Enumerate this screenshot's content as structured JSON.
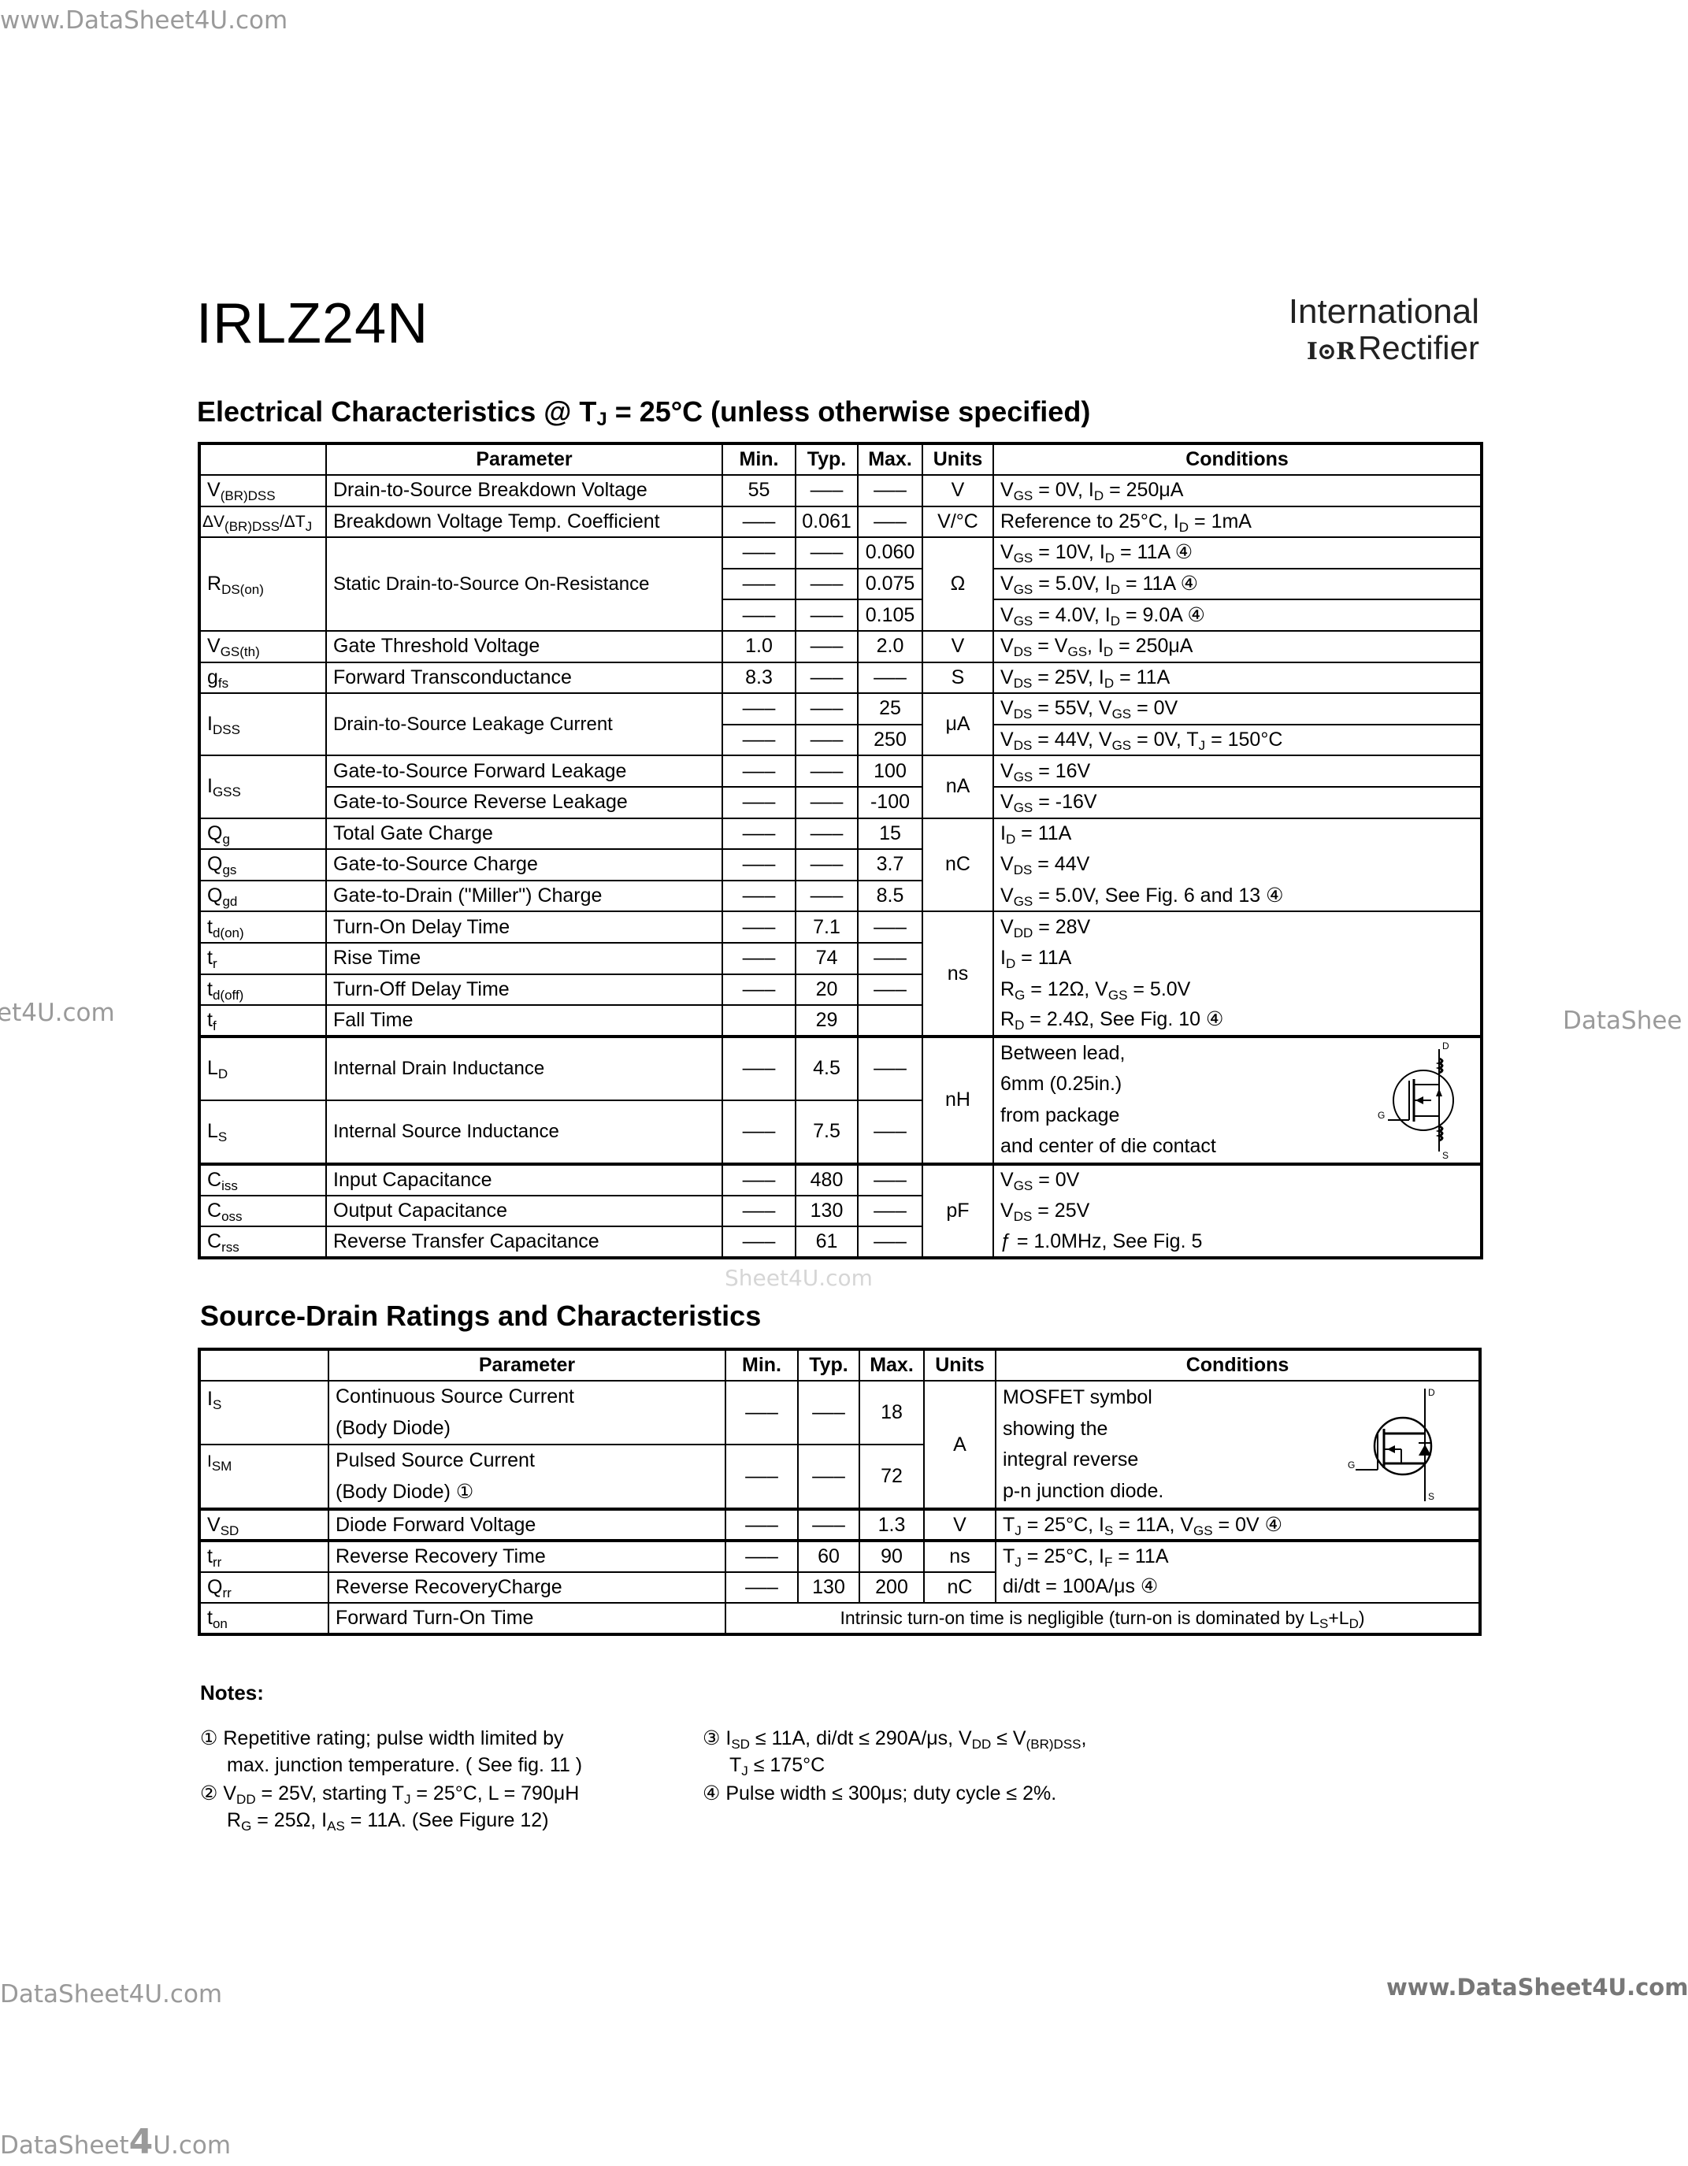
{
  "watermarks": {
    "top_left": "www.DataSheet4U.com",
    "mid_left": "et4U.com",
    "mid_right": "DataShee",
    "table_overlay": "Sheet4U.com",
    "bottom_left": "DataSheet4U.com",
    "bottom_right": "www.DataSheet4U.com",
    "footer_a": "DataSheet",
    "footer_4": "4",
    "footer_b": "U.com"
  },
  "title": "IRLZ24N",
  "logo": {
    "line1": "International",
    "mark": "I⊙R",
    "line2": "Rectifier"
  },
  "ec": {
    "heading": [
      "Electrical Characteristics @ T",
      "J",
      " = 25°C (unless otherwise specified)"
    ],
    "headers": {
      "parameter": "Parameter",
      "min": "Min.",
      "typ": "Typ.",
      "max": "Max.",
      "units": "Units",
      "conditions": "Conditions"
    },
    "rows": [
      {
        "symbol": [
          "V",
          "(BR)DSS"
        ],
        "parameter": "Drain-to-Source Breakdown Voltage",
        "min": "55",
        "typ": "–––",
        "max": "–––",
        "units": "V",
        "conditions": [
          "V",
          "GS",
          " = 0V, I",
          "D",
          " = 250μA"
        ]
      },
      {
        "symbol": [
          "ΔV",
          "(BR)DSS",
          "/ΔT",
          "J"
        ],
        "parameter": "Breakdown Voltage Temp. Coefficient",
        "min": "–––",
        "typ": "0.061",
        "max": "–––",
        "units": "V/°C",
        "conditions": [
          "Reference to 25°C, I",
          "D",
          " = 1mA"
        ]
      },
      {
        "symbol": [
          "R",
          "DS(on)"
        ],
        "parameter": "Static Drain-to-Source On-Resistance",
        "units": "Ω",
        "sub": [
          {
            "min": "–––",
            "typ": "–––",
            "max": "0.060",
            "conditions": [
              "V",
              "GS",
              " = 10V, I",
              "D",
              " = 11A ④"
            ]
          },
          {
            "min": "–––",
            "typ": "–––",
            "max": "0.075",
            "conditions": [
              "V",
              "GS",
              " = 5.0V, I",
              "D",
              " = 11A ④"
            ]
          },
          {
            "min": "–––",
            "typ": "–––",
            "max": "0.105",
            "conditions": [
              "V",
              "GS",
              " = 4.0V, I",
              "D",
              " = 9.0A ④"
            ]
          }
        ]
      },
      {
        "symbol": [
          "V",
          "GS(th)"
        ],
        "parameter": "Gate Threshold Voltage",
        "min": "1.0",
        "typ": "–––",
        "max": "2.0",
        "units": "V",
        "conditions": [
          "V",
          "DS",
          " = V",
          "GS",
          ", I",
          "D",
          " = 250μA"
        ]
      },
      {
        "symbol": [
          "g",
          "fs"
        ],
        "parameter": "Forward Transconductance",
        "min": "8.3",
        "typ": "–––",
        "max": "–––",
        "units": "S",
        "conditions": [
          "V",
          "DS",
          " = 25V, I",
          "D",
          " = 11A"
        ]
      },
      {
        "symbol": [
          "I",
          "DSS"
        ],
        "parameter": "Drain-to-Source Leakage Current",
        "units": "μA",
        "sub": [
          {
            "min": "–––",
            "typ": "–––",
            "max": "25",
            "conditions": [
              "V",
              "DS",
              " = 55V, V",
              "GS",
              " = 0V"
            ]
          },
          {
            "min": "–––",
            "typ": "–––",
            "max": "250",
            "conditions": [
              "V",
              "DS",
              " = 44V, V",
              "GS",
              " = 0V, T",
              "J",
              " = 150°C"
            ]
          }
        ]
      },
      {
        "symbol": [
          "I",
          "GSS"
        ],
        "units": "nA",
        "sub": [
          {
            "parameter": "Gate-to-Source Forward Leakage",
            "min": "–––",
            "typ": "–––",
            "max": "100",
            "conditions": [
              "V",
              "GS",
              " = 16V"
            ]
          },
          {
            "parameter": "Gate-to-Source Reverse Leakage",
            "min": "–––",
            "typ": "–––",
            "max": "-100",
            "conditions": [
              "V",
              "GS",
              " = -16V"
            ]
          }
        ]
      },
      {
        "symbol": [
          "Q",
          "g"
        ],
        "parameter": "Total Gate Charge",
        "min": "–––",
        "typ": "–––",
        "max": "15",
        "units": "nC",
        "conditions": [
          "I",
          "D",
          " = 11A"
        ]
      },
      {
        "symbol": [
          "Q",
          "gs"
        ],
        "parameter": "Gate-to-Source Charge",
        "min": "–––",
        "typ": "–––",
        "max": "3.7",
        "conditions": [
          "V",
          "DS",
          "  = 44V"
        ]
      },
      {
        "symbol": [
          "Q",
          "gd"
        ],
        "parameter": "Gate-to-Drain (\"Miller\") Charge",
        "min": "–––",
        "typ": "–––",
        "max": "8.5",
        "conditions": [
          "V",
          "GS",
          " = 5.0V, See Fig. 6 and 13 ④"
        ]
      },
      {
        "symbol": [
          "t",
          "d(on)"
        ],
        "parameter": "Turn-On Delay Time",
        "min": "–––",
        "typ": "7.1",
        "max": "–––",
        "units": "ns",
        "conditions": [
          "V",
          "DD",
          "  = 28V"
        ]
      },
      {
        "symbol": [
          "t",
          "r"
        ],
        "parameter": "Rise Time",
        "min": "–––",
        "typ": "74",
        "max": "–––",
        "conditions": [
          "I",
          "D",
          " = 11A"
        ]
      },
      {
        "symbol": [
          "t",
          "d(off)"
        ],
        "parameter": "Turn-Off Delay Time",
        "min": "–––",
        "typ": "20",
        "max": "–––",
        "conditions": [
          "R",
          "G",
          " = 12Ω, V",
          "GS",
          " = 5.0V"
        ]
      },
      {
        "symbol": [
          "t",
          "f"
        ],
        "parameter": "Fall Time",
        "min": "",
        "typ": "29",
        "max": "",
        "conditions": [
          "R",
          "D",
          " = 2.4Ω, See Fig. 10 ④"
        ]
      },
      {
        "symbol": [
          "L",
          "D"
        ],
        "parameter": "Internal Drain Inductance",
        "min": "–––",
        "typ": "4.5",
        "max": "–––",
        "units": "nH",
        "conditions_lines": [
          "Between lead,",
          "6mm (0.25in.)",
          "from package",
          "and center of die contact"
        ],
        "symbol_labels": {
          "d": "D",
          "g": "G",
          "s": "S"
        }
      },
      {
        "symbol": [
          "L",
          "S"
        ],
        "parameter": "Internal Source Inductance",
        "min": "–––",
        "typ": "7.5",
        "max": "–––"
      },
      {
        "symbol": [
          "C",
          "iss"
        ],
        "parameter": "Input Capacitance",
        "min": "–––",
        "typ": "480",
        "max": "–––",
        "units": "pF",
        "conditions": [
          "V",
          "GS",
          " = 0V"
        ]
      },
      {
        "symbol": [
          "C",
          "oss"
        ],
        "parameter": "Output Capacitance",
        "min": "–––",
        "typ": "130",
        "max": "–––",
        "conditions": [
          "V",
          "DS",
          " = 25V"
        ]
      },
      {
        "symbol": [
          "C",
          "rss"
        ],
        "parameter": "Reverse Transfer Capacitance",
        "min": "–––",
        "typ": "61",
        "max": "–––",
        "conditions": [
          "ƒ = 1.0MHz, See Fig. 5"
        ]
      }
    ]
  },
  "sd": {
    "heading": "Source-Drain Ratings and Characteristics",
    "headers": {
      "parameter": "Parameter",
      "min": "Min.",
      "typ": "Typ.",
      "max": "Max.",
      "units": "Units",
      "conditions": "Conditions"
    },
    "rows": [
      {
        "symbol": [
          "I",
          "S"
        ],
        "parameter_lines": [
          "Continuous Source Current",
          "(Body Diode)"
        ],
        "min": "–––",
        "typ": "–––",
        "max": "18",
        "units": "A",
        "conditions_lines": [
          "MOSFET symbol",
          "showing  the",
          "integral reverse",
          "p-n junction diode."
        ],
        "symbol_labels": {
          "d": "D",
          "g": "G",
          "s": "S"
        }
      },
      {
        "symbol": [
          "I",
          "SM"
        ],
        "parameter_lines": [
          "Pulsed Source Current",
          "(Body Diode) ①"
        ],
        "min": "–––",
        "typ": "–––",
        "max": "72"
      },
      {
        "symbol": [
          "V",
          "SD"
        ],
        "parameter": "Diode Forward Voltage",
        "min": "–––",
        "typ": "–––",
        "max": "1.3",
        "units": "V",
        "conditions": [
          "T",
          "J",
          " = 25°C, I",
          "S",
          " = 11A, V",
          "GS",
          " = 0V ④"
        ]
      },
      {
        "symbol": [
          "t",
          "rr"
        ],
        "parameter": "Reverse Recovery Time",
        "min": "–––",
        "typ": "60",
        "max": "90",
        "units": "ns",
        "conditions": [
          "T",
          "J",
          " = 25°C, I",
          "F",
          " = 11A"
        ]
      },
      {
        "symbol": [
          "Q",
          "rr"
        ],
        "parameter": "Reverse RecoveryCharge",
        "min": "–––",
        "typ": "130",
        "max": "200",
        "units": "nC",
        "conditions": [
          "di/dt = 100A/μs ④"
        ]
      },
      {
        "symbol": [
          "t",
          "on"
        ],
        "parameter": "Forward Turn-On Time",
        "span_text": [
          "Intrinsic turn-on time is negligible (turn-on is dominated by L",
          "S",
          "+L",
          "D",
          ")"
        ]
      }
    ]
  },
  "notes": {
    "title": "Notes:",
    "n1": [
      [
        "① Repetitive rating;  pulse width limited by"
      ],
      [
        "max. junction temperature. ( See fig. 11 )"
      ]
    ],
    "n2": [
      [
        "② V",
        "DD",
        " = 25V, starting T",
        "J",
        " = 25°C, L = 790μH"
      ],
      [
        "R",
        "G",
        " = 25Ω, I",
        "AS",
        " = 11A. (See Figure 12)"
      ]
    ],
    "n3": [
      [
        "③ I",
        "SD",
        " ≤ 11A, di/dt ≤ 290A/μs, V",
        "DD",
        " ≤ V",
        "(BR)DSS",
        ","
      ],
      [
        "T",
        "J",
        " ≤ 175°C"
      ]
    ],
    "n4": [
      [
        "④ Pulse width ≤ 300μs; duty cycle ≤ 2%."
      ]
    ]
  }
}
